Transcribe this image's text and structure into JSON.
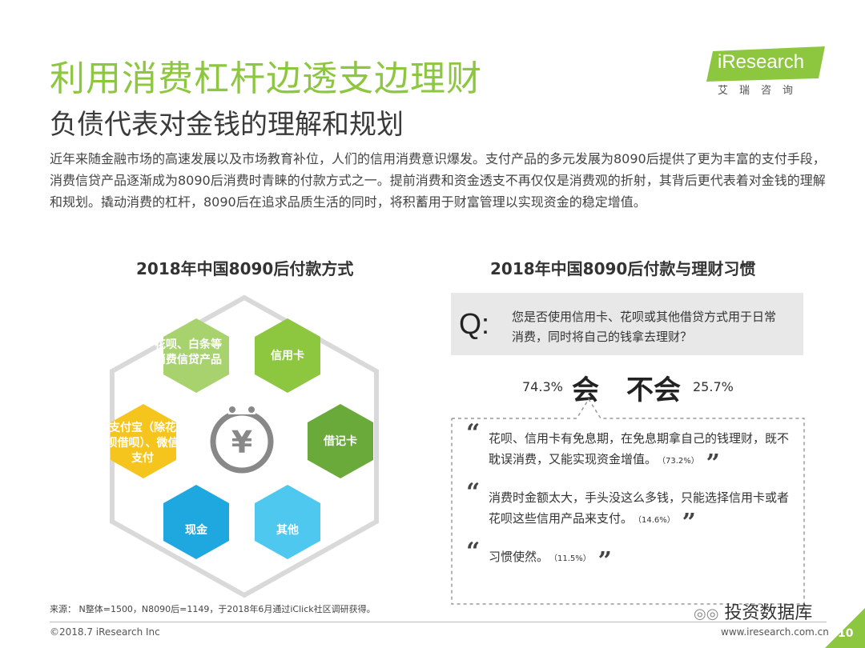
{
  "title": "利用消费杠杆边透支边理财",
  "subtitle": "负债代表对金钱的理解和规划",
  "logo": {
    "brand": "iResearch",
    "cn": "艾瑞咨询"
  },
  "intro": "近年来随金融市场的高速发展以及市场教育补位，人们的信用消费意识爆发。支付产品的多元发展为8090后提供了更为丰富的支付手段，消费信贷产品逐渐成为8090后消费时青睐的付款方式之一。提前消费和资金透支不再仅仅是消费观的折射，其背后更代表着对金钱的理解和规划。撬动消费的杠杆，8090后在追求品质生活的同时，将积蓄用于财富管理以实现资金的稳定增值。",
  "left_section": {
    "title": "2018年中国8090后付款方式",
    "hexagons": [
      {
        "label": "花呗、白条等消费信贷产品",
        "color": "#a8d26e"
      },
      {
        "label": "信用卡",
        "color": "#8dc63f"
      },
      {
        "label": "借记卡",
        "color": "#6aaa3a"
      },
      {
        "label": "其他",
        "color": "#4fc8f0"
      },
      {
        "label": "现金",
        "color": "#1fa7e0"
      },
      {
        "label": "支付宝（除花呗借呗）、微信支付",
        "color": "#f5c51d"
      }
    ],
    "center_icon": "yuan-icon"
  },
  "right_section": {
    "title": "2018年中国8090后付款与理财习惯",
    "question_mark": "Q:",
    "question": "您是否使用信用卡、花呗或其他借贷方式用于日常消费，同时将自己的钱拿去理财？",
    "yes_label": "会",
    "yes_pct": "74.3%",
    "no_label": "不会",
    "no_pct": "25.7%",
    "quotes": [
      {
        "text": "花呗、信用卡有免息期，在免息期拿自己的钱理财，既不耽误消费，又能实现资金增值。",
        "pct": "（73.2%）"
      },
      {
        "text": "消费时金额太大，手头没这么多钱，只能选择信用卡或者花呗这些信用产品来支付。",
        "pct": "（14.6%）"
      },
      {
        "text": "习惯使然。",
        "pct": "（11.5%）"
      }
    ]
  },
  "source": "来源： N整体=1500，N8090后=1149，于2018年6月通过iClick社区调研获得。",
  "copyright": "©2018.7 iResearch Inc",
  "website": "www.iresearch.com.cn",
  "wechat": "投资数据库",
  "page_number": "10",
  "colors": {
    "accent_green": "#8dc63f",
    "yellow": "#f5c51d",
    "blue": "#1fa7e0"
  }
}
